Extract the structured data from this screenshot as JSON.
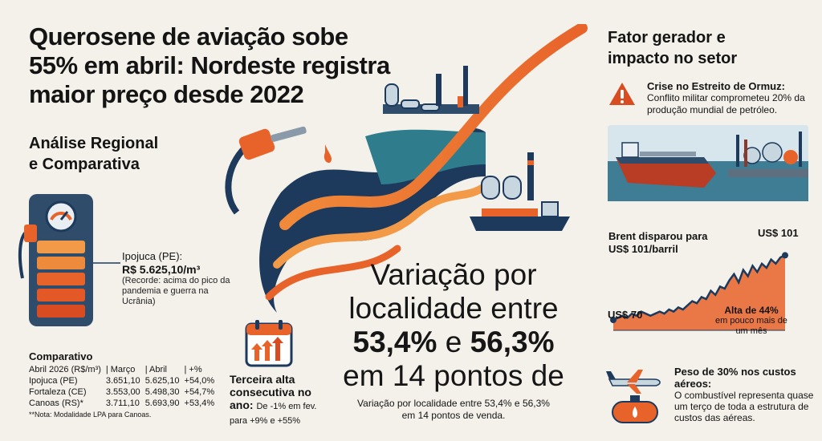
{
  "title": {
    "line1": "Querosene de aviação sobe",
    "line2": "55% em abril: Nordeste registra",
    "line3": "maior preço desde 2022"
  },
  "regional": {
    "line1": "Análise Regional",
    "line2": "e Comparativa"
  },
  "ipojuca": {
    "place": "Ipojuca (PE):",
    "price": "R$ 5.625,10/m³",
    "note": "(Recorde: acima do pico da pandemia e guerra na Ucrânia)"
  },
  "comparativo": {
    "heading": "Comparativo",
    "header": [
      "Abril 2026 (R$/m³)",
      "| Março",
      "| Abril",
      "| +%"
    ],
    "rows": [
      [
        "Ipojuca (PE)",
        "3.651,10",
        "5.625,10",
        "+54,0%"
      ],
      [
        "Fortaleza (CE)",
        "3.553,00",
        "5.498,30",
        "+54,7%"
      ],
      [
        "Canoas (RS)*",
        "3.711,10",
        "5.693,90",
        "+53,4%"
      ]
    ],
    "footnote": "**Nota: Modalidade LPA para Canoas."
  },
  "terceira": {
    "title": "Terceira alta consecutiva no ano:",
    "detail": "De -1% em fev. para +9% e +55%"
  },
  "variacao": {
    "line1": "Variação por",
    "line2": "localidade entre",
    "num1": "53,4%",
    "conj": " e ",
    "num2": "56,3%",
    "line4": "em 14 pontos de",
    "sub": "Variação por localidade entre 53,4% e 56,3% em 14 pontos de venda."
  },
  "fator": {
    "line1": "Fator gerador e",
    "line2": "impacto no setor"
  },
  "crise": {
    "heading": "Crise no Estreito de Ormuz:",
    "text": "Conflito militar comprometeu 20% da produção mundial de petróleo."
  },
  "brent": {
    "label": "Brent disparou para US$ 101/barril",
    "end_label": "US$ 101",
    "start_label": "US$ 70",
    "alta_heading": "Alta de 44%",
    "alta_text": "em pouco mais de um mês"
  },
  "chart_data": {
    "type": "area",
    "x": [
      0,
      1,
      2,
      3,
      4,
      5,
      6,
      7,
      8,
      9,
      10,
      11,
      12,
      13,
      14,
      15,
      16,
      17,
      18,
      19,
      20,
      21,
      22,
      23,
      24,
      25,
      26,
      27,
      28,
      29,
      30,
      31,
      32,
      33,
      34,
      35,
      36,
      37
    ],
    "values": [
      70,
      71,
      72,
      71,
      73,
      72,
      74,
      73,
      72,
      73,
      74,
      73,
      75,
      74,
      76,
      75,
      77,
      79,
      78,
      81,
      80,
      84,
      82,
      86,
      85,
      89,
      92,
      88,
      94,
      91,
      96,
      93,
      97,
      95,
      99,
      97,
      100,
      101
    ],
    "ylim": [
      65,
      105
    ],
    "start_value": 70,
    "end_value": 101,
    "accent": "#e8632a"
  },
  "peso": {
    "heading": "Peso de 30% nos custos aéreos:",
    "text": "O combustível representa quase um terço de toda a estrutura de custos das aéreas."
  },
  "colors": {
    "orange": "#e8632a",
    "navy": "#1d3a5c",
    "teal": "#2f7d8c",
    "bg": "#f4f1ea"
  }
}
